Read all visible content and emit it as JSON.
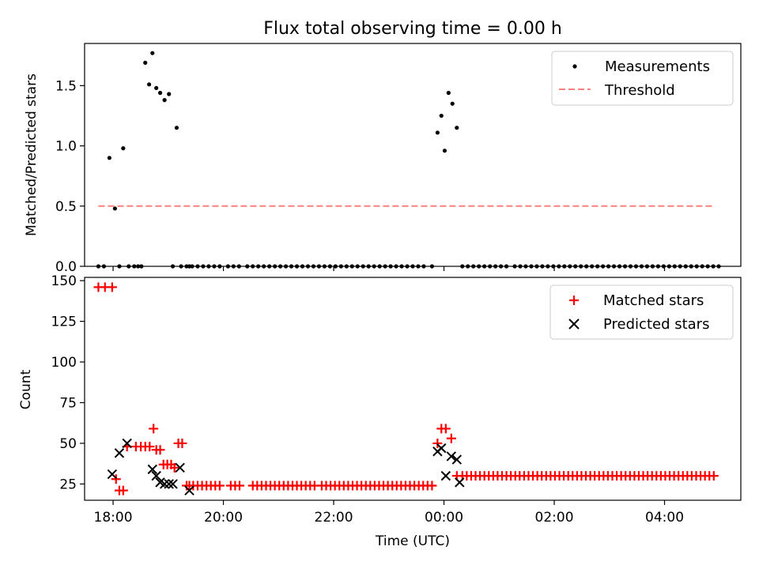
{
  "title": "Flux total observing time = 0.00 h",
  "chart_data": [
    {
      "type": "scatter",
      "ylabel": "Matched/Predicted stars",
      "xlabel": "",
      "xlim": [
        -0.35,
        11.55
      ],
      "ylim": [
        0.0,
        1.85
      ],
      "yticks": [
        0.0,
        0.5,
        1.0,
        1.5
      ],
      "ytick_labels": [
        "0.0",
        "0.5",
        "1.0",
        "1.5"
      ],
      "xticks": [
        0.1667,
        2.1667,
        4.1667,
        6.1667,
        8.1667,
        10.1667
      ],
      "grid": false,
      "legend": {
        "position": "top-right",
        "entries": [
          "Measurements",
          "Threshold"
        ]
      },
      "series": [
        {
          "name": "Measurements",
          "kind": "scatter",
          "marker": "dot",
          "color": "#000000",
          "x": [
            -0.1,
            0.0,
            0.1,
            0.2,
            0.28,
            0.35,
            0.45,
            0.55,
            0.62,
            0.68,
            0.75,
            0.82,
            0.88,
            0.95,
            1.02,
            1.1,
            1.18,
            1.25,
            1.32,
            1.4,
            1.5,
            1.55,
            1.6,
            1.7,
            1.8,
            1.9,
            2.0,
            2.1,
            2.25,
            2.35,
            2.45,
            2.6,
            2.7,
            2.8,
            2.9,
            3.0,
            3.1,
            3.2,
            3.3,
            3.4,
            3.5,
            3.6,
            3.7,
            3.8,
            3.9,
            4.0,
            4.1,
            4.2,
            4.3,
            4.4,
            4.5,
            4.6,
            4.7,
            4.8,
            4.9,
            5.0,
            5.1,
            5.2,
            5.3,
            5.4,
            5.5,
            5.6,
            5.7,
            5.8,
            5.95,
            6.05,
            6.12,
            6.18,
            6.25,
            6.32,
            6.4,
            6.5,
            6.6,
            6.7,
            6.8,
            6.9,
            7.0,
            7.1,
            7.2,
            7.3,
            7.45,
            7.55,
            7.65,
            7.75,
            7.85,
            7.95,
            8.05,
            8.15,
            8.25,
            8.35,
            8.45,
            8.55,
            8.65,
            8.75,
            8.85,
            8.95,
            9.05,
            9.15,
            9.25,
            9.35,
            9.45,
            9.55,
            9.65,
            9.75,
            9.85,
            9.95,
            10.05,
            10.15,
            10.25,
            10.35,
            10.45,
            10.55,
            10.65,
            10.75,
            10.85,
            10.95,
            11.05,
            11.15
          ],
          "y": [
            0.0,
            0.0,
            0.9,
            0.48,
            0.0,
            0.98,
            0.0,
            0.0,
            0.0,
            0.0,
            1.69,
            1.51,
            1.77,
            1.48,
            1.44,
            1.38,
            1.43,
            0.0,
            1.15,
            0.0,
            0.0,
            0.0,
            0.0,
            0.0,
            0.0,
            0.0,
            0.0,
            0.0,
            0.0,
            0.0,
            0.0,
            0.0,
            0.0,
            0.0,
            0.0,
            0.0,
            0.0,
            0.0,
            0.0,
            0.0,
            0.0,
            0.0,
            0.0,
            0.0,
            0.0,
            0.0,
            0.0,
            0.0,
            0.0,
            0.0,
            0.0,
            0.0,
            0.0,
            0.0,
            0.0,
            0.0,
            0.0,
            0.0,
            0.0,
            0.0,
            0.0,
            0.0,
            0.0,
            0.0,
            0.0,
            1.11,
            1.25,
            0.96,
            1.44,
            1.35,
            1.15,
            0.0,
            0.0,
            0.0,
            0.0,
            0.0,
            0.0,
            0.0,
            0.0,
            0.0,
            0.0,
            0.0,
            0.0,
            0.0,
            0.0,
            0.0,
            0.0,
            0.0,
            0.0,
            0.0,
            0.0,
            0.0,
            0.0,
            0.0,
            0.0,
            0.0,
            0.0,
            0.0,
            0.0,
            0.0,
            0.0,
            0.0,
            0.0,
            0.0,
            0.0,
            0.0,
            0.0,
            0.0,
            0.0,
            0.0,
            0.0,
            0.0,
            0.0,
            0.0,
            0.0,
            0.0,
            0.0,
            0.0
          ]
        },
        {
          "name": "Threshold",
          "kind": "dashed-line",
          "color": "#ff7f7f",
          "x": [
            -0.1,
            11.05
          ],
          "y": [
            0.5,
            0.5
          ]
        }
      ]
    },
    {
      "type": "scatter",
      "ylabel": "Count",
      "xlabel": "Time (UTC)",
      "xlim": [
        -0.35,
        11.55
      ],
      "ylim": [
        15,
        152
      ],
      "yticks": [
        25,
        50,
        75,
        100,
        125,
        150
      ],
      "ytick_labels": [
        "25",
        "50",
        "75",
        "100",
        "125",
        "150"
      ],
      "xticks": [
        0.1667,
        2.1667,
        4.1667,
        6.1667,
        8.1667,
        10.1667
      ],
      "xtick_labels": [
        "18:00",
        "20:00",
        "22:00",
        "00:00",
        "02:00",
        "04:00"
      ],
      "grid": false,
      "legend": {
        "position": "top-right",
        "entries": [
          "Matched stars",
          "Predicted stars"
        ]
      },
      "series": [
        {
          "name": "Matched stars",
          "kind": "scatter",
          "marker": "plus",
          "color": "#ff0000",
          "x": [
            -0.1,
            0.02,
            0.15,
            0.22,
            0.28,
            0.35,
            0.42,
            0.58,
            0.67,
            0.75,
            0.83,
            0.9,
            0.95,
            1.02,
            1.08,
            1.15,
            1.22,
            1.28,
            1.35,
            1.42,
            1.5,
            1.55,
            1.62,
            1.7,
            1.78,
            1.86,
            1.94,
            2.02,
            2.1,
            2.3,
            2.38,
            2.46,
            2.7,
            2.78,
            2.86,
            2.94,
            3.02,
            3.1,
            3.18,
            3.26,
            3.34,
            3.42,
            3.5,
            3.58,
            3.66,
            3.74,
            3.82,
            3.95,
            4.03,
            4.11,
            4.19,
            4.27,
            4.35,
            4.43,
            4.51,
            4.59,
            4.67,
            4.75,
            4.83,
            4.91,
            4.99,
            5.07,
            5.15,
            5.23,
            5.31,
            5.39,
            5.47,
            5.55,
            5.63,
            5.71,
            5.79,
            5.87,
            5.95,
            6.05,
            6.12,
            6.2,
            6.3,
            6.4,
            6.5,
            6.58,
            6.66,
            6.74,
            6.82,
            6.9,
            6.98,
            7.06,
            7.14,
            7.22,
            7.3,
            7.38,
            7.46,
            7.54,
            7.62,
            7.7,
            7.78,
            7.86,
            7.94,
            8.02,
            8.1,
            8.18,
            8.26,
            8.34,
            8.42,
            8.5,
            8.58,
            8.66,
            8.74,
            8.82,
            8.9,
            8.98,
            9.06,
            9.14,
            9.22,
            9.3,
            9.38,
            9.46,
            9.54,
            9.62,
            9.7,
            9.78,
            9.86,
            9.94,
            10.02,
            10.1,
            10.18,
            10.26,
            10.34,
            10.42,
            10.5,
            10.58,
            10.66,
            10.74,
            10.82,
            10.9,
            10.98,
            11.06
          ],
          "y": [
            146,
            146,
            146,
            28,
            21,
            21,
            48,
            48,
            48,
            48,
            48,
            59,
            46,
            46,
            37,
            37,
            37,
            35,
            50,
            50,
            24,
            24,
            24,
            24,
            24,
            24,
            24,
            24,
            24,
            24,
            24,
            24,
            24,
            24,
            24,
            24,
            24,
            24,
            24,
            24,
            24,
            24,
            24,
            24,
            24,
            24,
            24,
            24,
            24,
            24,
            24,
            24,
            24,
            24,
            24,
            24,
            24,
            24,
            24,
            24,
            24,
            24,
            24,
            24,
            24,
            24,
            24,
            24,
            24,
            24,
            24,
            24,
            24,
            50,
            59,
            59,
            53,
            30,
            30,
            30,
            30,
            30,
            30,
            30,
            30,
            30,
            30,
            30,
            30,
            30,
            30,
            30,
            30,
            30,
            30,
            30,
            30,
            30,
            30,
            30,
            30,
            30,
            30,
            30,
            30,
            30,
            30,
            30,
            30,
            30,
            30,
            30,
            30,
            30,
            30,
            30,
            30,
            30,
            30,
            30,
            30,
            30,
            30,
            30,
            30,
            30,
            30,
            30,
            30,
            30,
            30,
            30,
            30,
            30,
            30,
            30
          ]
        },
        {
          "name": "Predicted stars",
          "kind": "scatter",
          "marker": "x",
          "color": "#000000",
          "x": [
            0.15,
            0.28,
            0.42,
            0.88,
            0.95,
            1.02,
            1.1,
            1.18,
            1.25,
            1.38,
            1.55,
            6.05,
            6.12,
            6.2,
            6.3,
            6.4,
            6.45
          ],
          "y": [
            31,
            44,
            50,
            34,
            30,
            26,
            25,
            25,
            25,
            35,
            21,
            45,
            47,
            30,
            42,
            40,
            26
          ]
        }
      ]
    }
  ]
}
